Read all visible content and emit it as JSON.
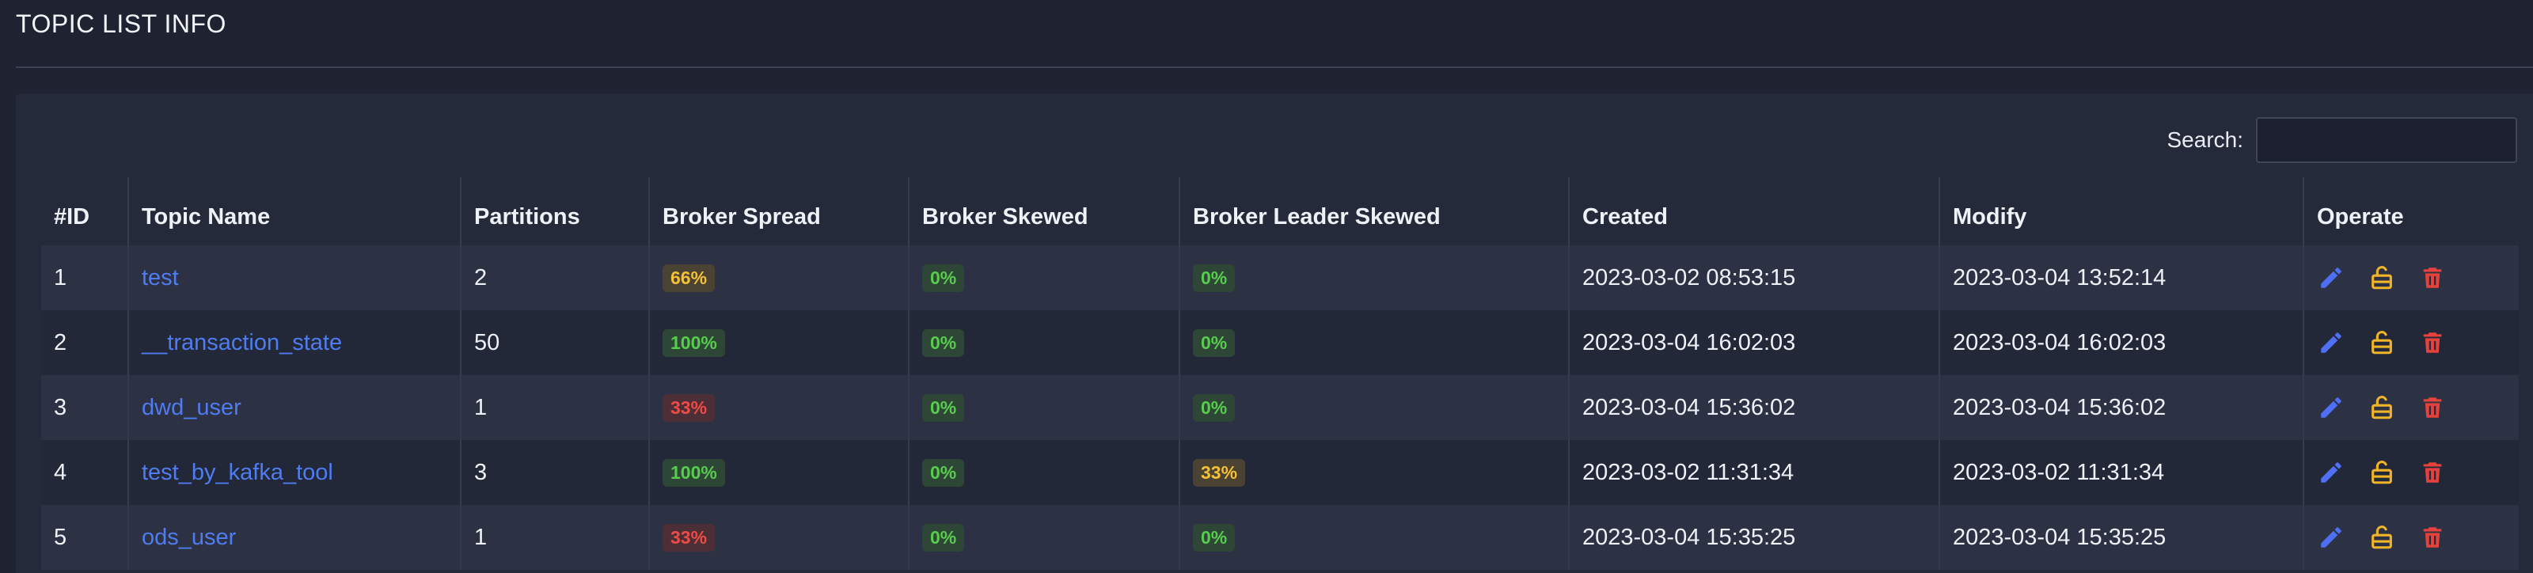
{
  "page": {
    "title": "TOPIC LIST INFO"
  },
  "search": {
    "label": "Search:",
    "value": "",
    "placeholder": ""
  },
  "table": {
    "headers": {
      "id": "#ID",
      "name": "Topic Name",
      "partitions": "Partitions",
      "spread": "Broker Spread",
      "skewed": "Broker Skewed",
      "leader_skewed": "Broker Leader Skewed",
      "created": "Created",
      "modify": "Modify",
      "operate": "Operate"
    },
    "rows": [
      {
        "id": "1",
        "name": "test",
        "partitions": "2",
        "spread": {
          "text": "66%",
          "status": "warning"
        },
        "skewed": {
          "text": "0%",
          "status": "success"
        },
        "leader_skewed": {
          "text": "0%",
          "status": "success"
        },
        "created": "2023-03-02 08:53:15",
        "modify": "2023-03-04 13:52:14"
      },
      {
        "id": "2",
        "name": "__transaction_state",
        "partitions": "50",
        "spread": {
          "text": "100%",
          "status": "success"
        },
        "skewed": {
          "text": "0%",
          "status": "success"
        },
        "leader_skewed": {
          "text": "0%",
          "status": "success"
        },
        "created": "2023-03-04 16:02:03",
        "modify": "2023-03-04 16:02:03"
      },
      {
        "id": "3",
        "name": "dwd_user",
        "partitions": "1",
        "spread": {
          "text": "33%",
          "status": "danger"
        },
        "skewed": {
          "text": "0%",
          "status": "success"
        },
        "leader_skewed": {
          "text": "0%",
          "status": "success"
        },
        "created": "2023-03-04 15:36:02",
        "modify": "2023-03-04 15:36:02"
      },
      {
        "id": "4",
        "name": "test_by_kafka_tool",
        "partitions": "3",
        "spread": {
          "text": "100%",
          "status": "success"
        },
        "skewed": {
          "text": "0%",
          "status": "success"
        },
        "leader_skewed": {
          "text": "33%",
          "status": "warning"
        },
        "created": "2023-03-02 11:31:34",
        "modify": "2023-03-02 11:31:34"
      },
      {
        "id": "5",
        "name": "ods_user",
        "partitions": "1",
        "spread": {
          "text": "33%",
          "status": "danger"
        },
        "skewed": {
          "text": "0%",
          "status": "success"
        },
        "leader_skewed": {
          "text": "0%",
          "status": "success"
        },
        "created": "2023-03-04 15:35:25",
        "modify": "2023-03-04 15:35:25"
      }
    ],
    "operate_icons": [
      "pencil-icon",
      "unlock-icon",
      "trash-icon"
    ]
  },
  "colors": {
    "background": "#1e2231",
    "panel": "#252a3a",
    "link": "#4f7cf0",
    "edit_icon": "#4f6ff5",
    "unlock_icon": "#f0b429",
    "delete_icon": "#e5413d",
    "badge_warning": "#f4c036",
    "badge_success": "#58cc4f",
    "badge_danger": "#ee4b46"
  }
}
